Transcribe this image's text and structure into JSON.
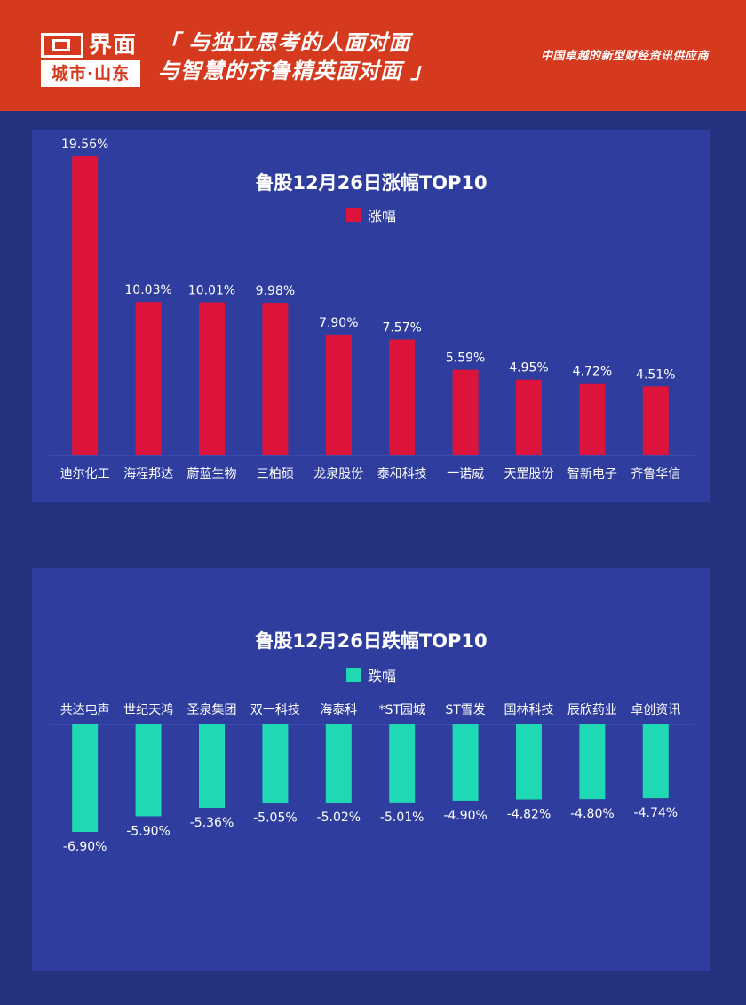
{
  "header": {
    "logo_name": "界面",
    "logo_city": "城市·山东",
    "slogan_line1": "「 与独立思考的人面对面",
    "slogan_line2": "与智慧的齐鲁精英面对面 」",
    "tagline": "中国卓越的新型财经资讯供应商"
  },
  "colors": {
    "header_bg": "#d63a1e",
    "page_bg": "#23317f",
    "panel_bg": "#2e3d9e",
    "gain_bar": "#dc143c",
    "loss_bar": "#1fd8b4"
  },
  "chart_data": [
    {
      "type": "bar",
      "title": "鲁股12月26日涨幅TOP10",
      "legend": "涨幅",
      "categories": [
        "迪尔化工",
        "海程邦达",
        "蔚蓝生物",
        "三柏硕",
        "龙泉股份",
        "泰和科技",
        "一诺威",
        "天罡股份",
        "智新电子",
        "齐鲁华信"
      ],
      "series": [
        {
          "name": "涨幅",
          "values": [
            19.56,
            10.03,
            10.01,
            9.98,
            7.9,
            7.57,
            5.59,
            4.95,
            4.72,
            4.51
          ]
        }
      ],
      "value_labels": [
        "19.56%",
        "10.03%",
        "10.01%",
        "9.98%",
        "7.90%",
        "7.57%",
        "5.59%",
        "4.95%",
        "4.72%",
        "4.51%"
      ],
      "unit": "%",
      "ylim": [
        0,
        19.56
      ]
    },
    {
      "type": "bar",
      "title": "鲁股12月26日跌幅TOP10",
      "legend": "跌幅",
      "categories": [
        "共达电声",
        "世纪天鸿",
        "圣泉集团",
        "双一科技",
        "海泰科",
        "*ST园城",
        "ST雪发",
        "国林科技",
        "辰欣药业",
        "卓创资讯"
      ],
      "series": [
        {
          "name": "跌幅",
          "values": [
            -6.9,
            -5.9,
            -5.36,
            -5.05,
            -5.02,
            -5.01,
            -4.9,
            -4.82,
            -4.8,
            -4.74
          ]
        }
      ],
      "value_labels": [
        "-6.90%",
        "-5.90%",
        "-5.36%",
        "-5.05%",
        "-5.02%",
        "-5.01%",
        "-4.90%",
        "-4.82%",
        "-4.80%",
        "-4.74%"
      ],
      "unit": "%",
      "ylim": [
        -6.9,
        0
      ]
    }
  ]
}
